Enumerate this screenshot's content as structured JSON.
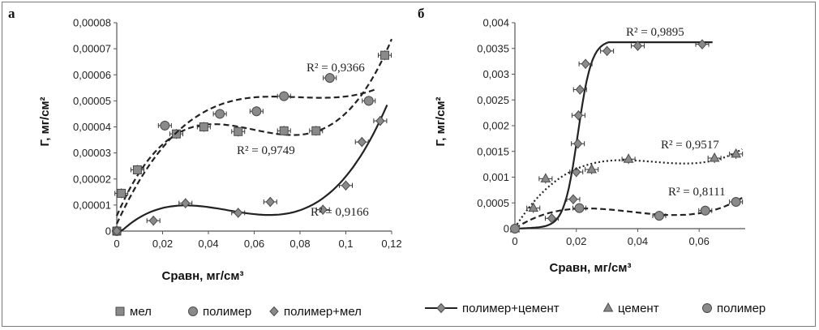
{
  "chart_data": [
    {
      "type": "scatter",
      "panel_label": "а",
      "ylabel": "Г, мг/см²",
      "xlabel": "Cравн, мг/см³",
      "xlim": [
        0,
        0.12
      ],
      "ylim": [
        0,
        8e-05
      ],
      "x_ticks": [
        "0",
        "0,02",
        "0,04",
        "0,06",
        "0,08",
        "0,1",
        "0,12"
      ],
      "y_ticks": [
        "0",
        "0,00001",
        "0,00002",
        "0,00003",
        "0,00004",
        "0,00005",
        "0,00006",
        "0,00007",
        "0,00008"
      ],
      "series": [
        {
          "name": "мел",
          "marker": "square",
          "x": [
            0,
            0.002,
            0.009,
            0.026,
            0.038,
            0.053,
            0.073,
            0.087,
            0.117
          ],
          "y": [
            0,
            1.45e-05,
            2.35e-05,
            3.73e-05,
            4e-05,
            3.82e-05,
            3.85e-05,
            3.85e-05,
            6.75e-05
          ],
          "trend": "dashed",
          "r2": "R² = 0,9749"
        },
        {
          "name": "полимер",
          "marker": "circle",
          "x": [
            0,
            0.021,
            0.045,
            0.061,
            0.073,
            0.093,
            0.11
          ],
          "y": [
            0,
            4.05e-05,
            4.5e-05,
            4.6e-05,
            5.18e-05,
            5.88e-05,
            5e-05
          ],
          "trend": "dashed",
          "r2": "R² = 0,9366"
        },
        {
          "name": "полимер+мел",
          "marker": "diamond",
          "x": [
            0,
            0.016,
            0.03,
            0.053,
            0.067,
            0.09,
            0.1,
            0.107,
            0.115
          ],
          "y": [
            0,
            4e-06,
            1.07e-05,
            7e-06,
            1.12e-05,
            8.2e-06,
            1.75e-05,
            3.42e-05,
            4.23e-05
          ],
          "trend": "solid",
          "r2": "R² = 0,9166"
        }
      ],
      "legend": [
        "мел",
        "полимер",
        "полимер+мел"
      ]
    },
    {
      "type": "scatter",
      "panel_label": "б",
      "ylabel": "Г, мг/см²",
      "xlabel": "Cравн, мг/см³",
      "xlim": [
        0,
        0.075
      ],
      "ylim": [
        0,
        0.004
      ],
      "x_ticks": [
        "0",
        "0,02",
        "0,04",
        "0,06"
      ],
      "y_ticks": [
        "0",
        "0,0005",
        "0,001",
        "0,0015",
        "0,002",
        "0,0025",
        "0,003",
        "0,0035",
        "0,004"
      ],
      "series": [
        {
          "name": "полимер+цемент",
          "marker": "diamond",
          "x": [
            0,
            0.012,
            0.019,
            0.02,
            0.0205,
            0.0207,
            0.0212,
            0.023,
            0.03,
            0.04,
            0.061
          ],
          "y": [
            0,
            0.0002,
            0.00057,
            0.0011,
            0.00165,
            0.0022,
            0.0027,
            0.0032,
            0.00345,
            0.00355,
            0.00358
          ],
          "trend": "solid",
          "r2": "R² = 0,9895"
        },
        {
          "name": "цемент",
          "marker": "triangle",
          "x": [
            0,
            0.006,
            0.01,
            0.025,
            0.037,
            0.065,
            0.072
          ],
          "y": [
            0,
            0.0004,
            0.00097,
            0.00115,
            0.00135,
            0.00137,
            0.00145
          ],
          "trend": "dotted",
          "r2": "R² = 0,9517"
        },
        {
          "name": "полимер",
          "marker": "circle",
          "x": [
            0,
            0.021,
            0.047,
            0.062,
            0.072
          ],
          "y": [
            0,
            0.0004,
            0.00025,
            0.00035,
            0.00052
          ],
          "trend": "dashed",
          "r2": "R² = 0,8111"
        }
      ],
      "legend": [
        "полимер+цемент",
        "цемент",
        "полимер"
      ]
    }
  ]
}
